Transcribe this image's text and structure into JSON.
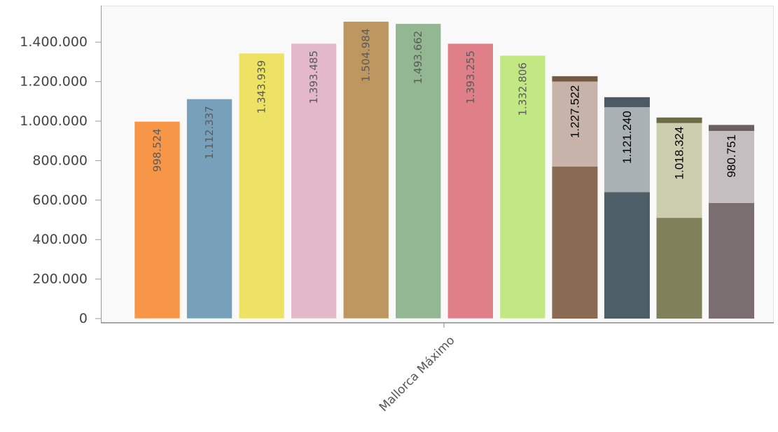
{
  "chart_data": {
    "type": "bar",
    "categories": [
      "Mallorca Máximo"
    ],
    "y_tick_labels": [
      "0",
      "200.000",
      "400.000",
      "600.000",
      "800.000",
      "1.000.000",
      "1.200.000",
      "1.400.000"
    ],
    "y_ticks": [
      0,
      200000,
      400000,
      600000,
      800000,
      1000000,
      1200000,
      1400000
    ],
    "ylim": [
      0,
      1600000
    ],
    "grid": false,
    "legend": "none",
    "series": [
      {
        "label": "998.524",
        "value": 998524,
        "color": "#F79646"
      },
      {
        "label": "1.112.337",
        "value": 1112337,
        "color": "#77A1BA"
      },
      {
        "label": "1.343.939",
        "value": 1343939,
        "color": "#EDE264"
      },
      {
        "label": "1.393.485",
        "value": 1393485,
        "color": "#E4B8CB"
      },
      {
        "label": "1.504.984",
        "value": 1504984,
        "color": "#BE965F"
      },
      {
        "label": "1.493.662",
        "value": 1493662,
        "color": "#93B693"
      },
      {
        "label": "1.393.255",
        "value": 1393255,
        "color": "#E17F88"
      },
      {
        "label": "1.332.806",
        "value": 1332806,
        "color": "#C2E884"
      },
      {
        "label": "1.227.522",
        "value": 1227522,
        "overlay_top": 1200000,
        "lower_value": 770000,
        "color": "#8A6A52",
        "overlay_color": "#C7B3AA",
        "cap_color": "#775843"
      },
      {
        "label": "1.121.240",
        "value": 1121240,
        "overlay_top": 1070000,
        "lower_value": 640000,
        "color": "#4E5E68",
        "overlay_color": "#A9B1B4",
        "cap_color": "#4B5A63"
      },
      {
        "label": "1.018.324",
        "value": 1018324,
        "overlay_top": 990000,
        "lower_value": 510000,
        "color": "#80805A",
        "overlay_color": "#CDCDAF",
        "cap_color": "#6B6B45"
      },
      {
        "label": "980.751",
        "value": 980751,
        "overlay_top": 950000,
        "lower_value": 585000,
        "color": "#7A6E70",
        "overlay_color": "#C5BEC0",
        "cap_color": "#6A5F61"
      }
    ]
  }
}
